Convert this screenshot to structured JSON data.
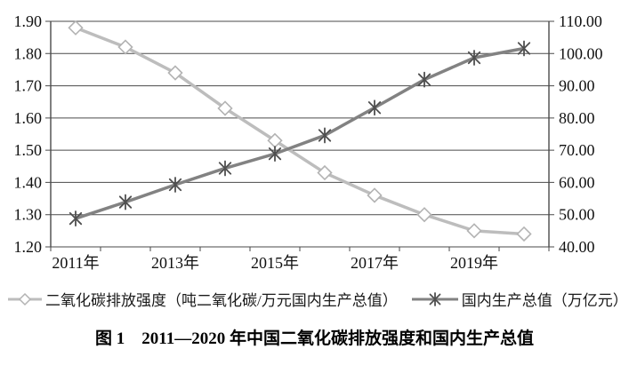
{
  "chart_data": {
    "type": "line",
    "title": "",
    "categories": [
      "2011年",
      "2012年",
      "2013年",
      "2014年",
      "2015年",
      "2016年",
      "2017年",
      "2018年",
      "2019年",
      "2020年"
    ],
    "x_tick_labels": [
      "2011年",
      "2013年",
      "2015年",
      "2017年",
      "2019年"
    ],
    "series": [
      {
        "name": "二氧化碳排放强度（吨二氧化碳/万元国内生产总值）",
        "axis": "left",
        "marker": "diamond",
        "line_color": "#bdbdbd",
        "marker_color": "#b3b3b3",
        "values": [
          1.88,
          1.82,
          1.74,
          1.63,
          1.53,
          1.43,
          1.36,
          1.3,
          1.25,
          1.24
        ]
      },
      {
        "name": "国内生产总值（万亿元）",
        "axis": "right",
        "marker": "asterisk",
        "line_color": "#828282",
        "marker_color": "#4f4f4f",
        "values": [
          48.8,
          53.9,
          59.3,
          64.4,
          68.9,
          74.6,
          83.2,
          91.9,
          98.7,
          101.6
        ]
      }
    ],
    "left_axis": {
      "min": 1.2,
      "max": 1.9,
      "step": 0.1,
      "tick_labels": [
        "1.90",
        "1.80",
        "1.70",
        "1.60",
        "1.50",
        "1.40",
        "1.30",
        "1.20"
      ]
    },
    "right_axis": {
      "min": 40,
      "max": 110,
      "step": 10,
      "tick_labels": [
        "110.00",
        "100.00",
        "90.00",
        "80.00",
        "70.00",
        "60.00",
        "50.00",
        "40.00"
      ]
    },
    "grid": true,
    "legend_position": "bottom",
    "axis_color": "#4a4a4a",
    "text_color": "#111111"
  },
  "caption": "图 1　2011—2020 年中国二氧化碳排放强度和国内生产总值"
}
